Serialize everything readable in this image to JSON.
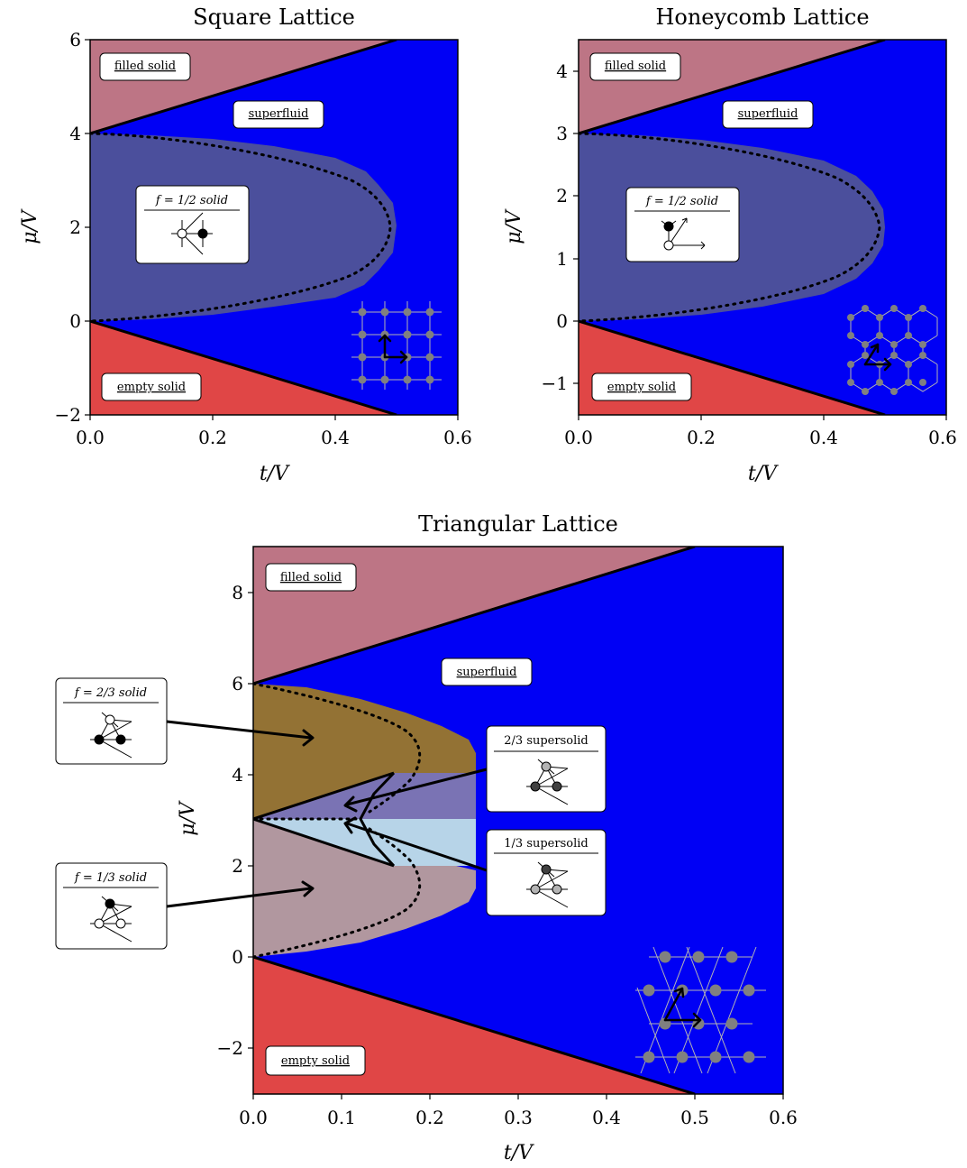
{
  "colors": {
    "filled_solid": "#bd7585",
    "superfluid": "#0000f5",
    "half_solid": "#4b4f9c",
    "empty_solid": "#e04646",
    "two_thirds_solid": "#937234",
    "one_third_solid": "#b1979f",
    "two_thirds_supersolid": "#7a73b4",
    "one_third_supersolid": "#b7d4e8",
    "lattice_site": "#808080",
    "boundary": "#000000"
  },
  "chart_data": [
    {
      "type": "heatmap",
      "title": "Square Lattice",
      "xlabel": "t/V",
      "ylabel": "μ/V",
      "xlim": [
        0,
        0.6
      ],
      "ylim": [
        -2,
        6
      ],
      "xticks": [
        "0.0",
        "0.2",
        "0.4",
        "0.6"
      ],
      "yticks": [
        "−2",
        "0",
        "2",
        "4",
        "6"
      ],
      "lines": [
        {
          "name": "filled boundary",
          "style": "solid",
          "x": [
            0,
            0.5
          ],
          "y": [
            4,
            6
          ]
        },
        {
          "name": "empty boundary",
          "style": "solid",
          "x": [
            0,
            0.5
          ],
          "y": [
            0,
            -2
          ]
        },
        {
          "name": "solid boundary",
          "style": "dotted",
          "x": [
            0.0,
            0.1,
            0.2,
            0.3,
            0.4,
            0.45,
            0.49,
            0.45,
            0.4,
            0.3,
            0.2,
            0.1,
            0.0
          ],
          "y": [
            4.0,
            3.9,
            3.77,
            3.55,
            3.2,
            2.85,
            2.0,
            1.15,
            0.8,
            0.45,
            0.23,
            0.1,
            0.0
          ]
        }
      ],
      "regions": [
        {
          "label": "filled solid"
        },
        {
          "label": "superfluid"
        },
        {
          "label": "f = 1/2 solid"
        },
        {
          "label": "empty solid"
        }
      ]
    },
    {
      "type": "heatmap",
      "title": "Honeycomb Lattice",
      "xlabel": "t/V",
      "ylabel": "μ/V",
      "xlim": [
        0,
        0.6
      ],
      "ylim": [
        -1.5,
        4.5
      ],
      "xticks": [
        "0.0",
        "0.2",
        "0.4",
        "0.6"
      ],
      "yticks": [
        "−1",
        "0",
        "1",
        "2",
        "3",
        "4"
      ],
      "lines": [
        {
          "name": "filled boundary",
          "style": "solid",
          "x": [
            0,
            0.5
          ],
          "y": [
            3,
            4.5
          ]
        },
        {
          "name": "empty boundary",
          "style": "solid",
          "x": [
            0,
            0.5
          ],
          "y": [
            0,
            -1.5
          ]
        },
        {
          "name": "solid boundary",
          "style": "dotted",
          "x": [
            0.0,
            0.1,
            0.2,
            0.3,
            0.4,
            0.45,
            0.5,
            0.45,
            0.4,
            0.3,
            0.2,
            0.1,
            0.0
          ],
          "y": [
            3.0,
            2.93,
            2.83,
            2.66,
            2.4,
            2.14,
            1.5,
            0.86,
            0.6,
            0.34,
            0.17,
            0.07,
            0.0
          ]
        }
      ],
      "regions": [
        {
          "label": "filled solid"
        },
        {
          "label": "superfluid"
        },
        {
          "label": "f = 1/2 solid"
        },
        {
          "label": "empty solid"
        }
      ]
    },
    {
      "type": "heatmap",
      "title": "Triangular Lattice",
      "xlabel": "t/V",
      "ylabel": "μ/V",
      "xlim": [
        0,
        0.6
      ],
      "ylim": [
        -3,
        9
      ],
      "xticks": [
        "0.0",
        "0.1",
        "0.2",
        "0.3",
        "0.4",
        "0.5",
        "0.6"
      ],
      "yticks": [
        "−2",
        "0",
        "2",
        "4",
        "6",
        "8"
      ],
      "lines": [
        {
          "name": "filled boundary",
          "style": "solid",
          "x": [
            0,
            0.5
          ],
          "y": [
            6,
            9
          ]
        },
        {
          "name": "empty boundary",
          "style": "solid",
          "x": [
            0,
            0.5
          ],
          "y": [
            0,
            -3
          ]
        },
        {
          "name": "upper solid boundary",
          "style": "dotted",
          "x": [
            0.0,
            0.06,
            0.12,
            0.17,
            0.19,
            0.18,
            0.15,
            0.13
          ],
          "y": [
            6.0,
            5.8,
            5.4,
            4.9,
            4.4,
            4.1,
            3.75,
            3.55
          ]
        },
        {
          "name": "lower solid boundary",
          "style": "dotted",
          "x": [
            0.0,
            0.06,
            0.12,
            0.17,
            0.19,
            0.18,
            0.15,
            0.13
          ],
          "y": [
            0.0,
            0.2,
            0.6,
            1.1,
            1.6,
            1.9,
            2.25,
            2.45
          ]
        },
        {
          "name": "upper supersolid boundary",
          "style": "solid",
          "x": [
            0,
            0.16
          ],
          "y": [
            3,
            4
          ]
        },
        {
          "name": "lower supersolid boundary",
          "style": "solid",
          "x": [
            0,
            0.16
          ],
          "y": [
            3,
            2
          ]
        },
        {
          "name": "transition",
          "style": "dotted",
          "x": [
            0,
            0.12
          ],
          "y": [
            3,
            3
          ]
        }
      ],
      "regions": [
        {
          "label": "filled solid"
        },
        {
          "label": "superfluid"
        },
        {
          "label": "f = 2/3 solid"
        },
        {
          "label": "f = 1/3 solid"
        },
        {
          "label": "2/3 supersolid"
        },
        {
          "label": "1/3 supersolid"
        },
        {
          "label": "empty solid"
        }
      ]
    }
  ]
}
